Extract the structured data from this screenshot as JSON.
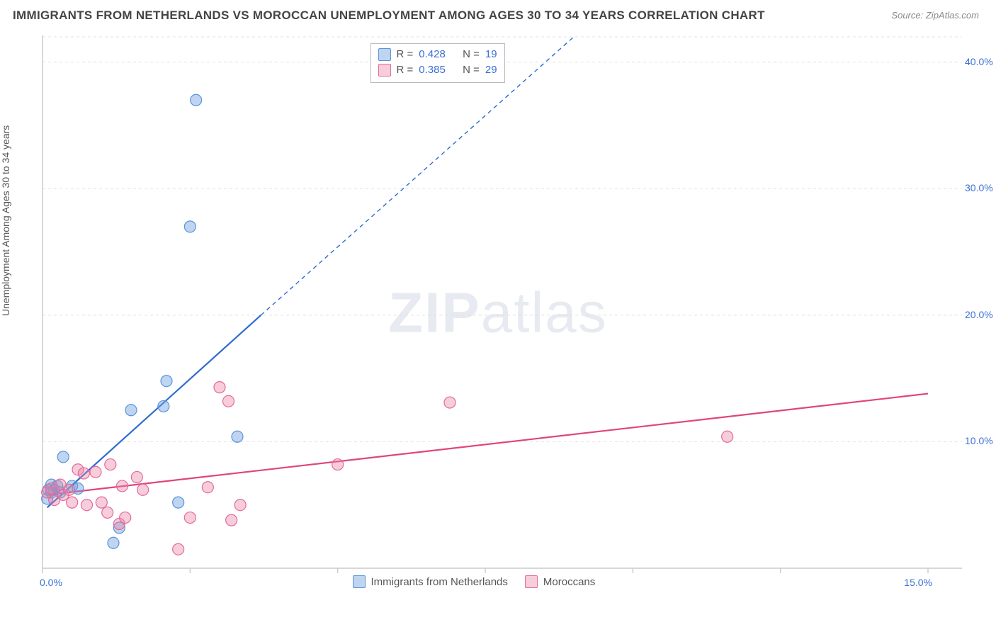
{
  "title": "IMMIGRANTS FROM NETHERLANDS VS MOROCCAN UNEMPLOYMENT AMONG AGES 30 TO 34 YEARS CORRELATION CHART",
  "source_label": "Source:",
  "source_value": "ZipAtlas.com",
  "watermark_a": "ZIP",
  "watermark_b": "atlas",
  "y_axis_label": "Unemployment Among Ages 30 to 34 years",
  "chart": {
    "type": "scatter",
    "background_color": "#ffffff",
    "grid_color": "#e2e2e2",
    "axis_color": "#cccccc",
    "xlim": [
      0,
      15
    ],
    "ylim": [
      0,
      42
    ],
    "x_ticks": [
      0,
      2.5,
      5,
      7.5,
      10,
      12.5,
      15
    ],
    "x_tick_labels": {
      "0": "0.0%",
      "15": "15.0%"
    },
    "y_ticks": [
      10,
      20,
      30,
      40
    ],
    "y_tick_labels": {
      "10": "10.0%",
      "20": "20.0%",
      "30": "30.0%",
      "40": "40.0%"
    },
    "marker_radius": 8,
    "trend_line_width": 2.2,
    "series": [
      {
        "name": "Immigrants from Netherlands",
        "fill": "rgba(110,160,225,0.45)",
        "stroke": "#5a94d8",
        "trend_color": "#2e6bd0",
        "trend_solid": {
          "x1": 0.08,
          "y1": 4.8,
          "x2": 3.7,
          "y2": 20.0
        },
        "trend_dash": {
          "x1": 3.7,
          "y1": 20.0,
          "x2": 9.0,
          "y2": 42.0
        },
        "points": [
          [
            0.08,
            5.5
          ],
          [
            0.1,
            6.2
          ],
          [
            0.15,
            6.0
          ],
          [
            0.15,
            6.6
          ],
          [
            0.2,
            6.2
          ],
          [
            0.25,
            6.5
          ],
          [
            0.3,
            6.0
          ],
          [
            0.35,
            8.8
          ],
          [
            0.5,
            6.5
          ],
          [
            0.6,
            6.3
          ],
          [
            1.2,
            2.0
          ],
          [
            1.3,
            3.2
          ],
          [
            1.5,
            12.5
          ],
          [
            2.05,
            12.8
          ],
          [
            2.1,
            14.8
          ],
          [
            2.3,
            5.2
          ],
          [
            2.5,
            27.0
          ],
          [
            2.6,
            37.0
          ],
          [
            3.3,
            10.4
          ]
        ]
      },
      {
        "name": "Moroccans",
        "fill": "rgba(235,130,165,0.40)",
        "stroke": "#e36a9a",
        "trend_color": "#e0447e",
        "trend_solid": {
          "x1": 0.08,
          "y1": 5.8,
          "x2": 15.0,
          "y2": 13.8
        },
        "trend_dash": null,
        "points": [
          [
            0.08,
            6.0
          ],
          [
            0.15,
            6.3
          ],
          [
            0.2,
            5.4
          ],
          [
            0.3,
            6.6
          ],
          [
            0.35,
            5.8
          ],
          [
            0.45,
            6.2
          ],
          [
            0.5,
            5.2
          ],
          [
            0.6,
            7.8
          ],
          [
            0.7,
            7.5
          ],
          [
            0.75,
            5.0
          ],
          [
            0.9,
            7.6
          ],
          [
            1.0,
            5.2
          ],
          [
            1.1,
            4.4
          ],
          [
            1.15,
            8.2
          ],
          [
            1.3,
            3.5
          ],
          [
            1.35,
            6.5
          ],
          [
            1.4,
            4.0
          ],
          [
            1.6,
            7.2
          ],
          [
            1.7,
            6.2
          ],
          [
            2.3,
            1.5
          ],
          [
            2.5,
            4.0
          ],
          [
            2.8,
            6.4
          ],
          [
            3.0,
            14.3
          ],
          [
            3.15,
            13.2
          ],
          [
            3.2,
            3.8
          ],
          [
            3.35,
            5.0
          ],
          [
            5.0,
            8.2
          ],
          [
            6.9,
            13.1
          ],
          [
            11.6,
            10.4
          ]
        ]
      }
    ],
    "stats_legend": {
      "top_pct": 2,
      "left_pct": 37,
      "rows": [
        {
          "swatch_fill": "rgba(110,160,225,0.45)",
          "swatch_stroke": "#5a94d8",
          "r": "0.428",
          "n": "19"
        },
        {
          "swatch_fill": "rgba(235,130,165,0.40)",
          "swatch_stroke": "#e36a9a",
          "r": "0.385",
          "n": "29"
        }
      ],
      "label_r": "R =",
      "label_n": "N ="
    },
    "bottom_legend": {
      "items": [
        {
          "swatch_fill": "rgba(110,160,225,0.45)",
          "swatch_stroke": "#5a94d8",
          "label": "Immigrants from Netherlands"
        },
        {
          "swatch_fill": "rgba(235,130,165,0.40)",
          "swatch_stroke": "#e36a9a",
          "label": "Moroccans"
        }
      ]
    }
  }
}
